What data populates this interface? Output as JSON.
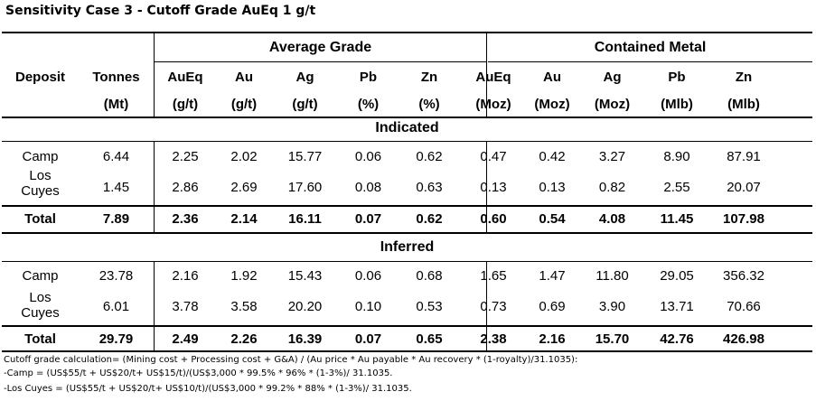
{
  "title": "Sensitivity Case 3 - Cutoff Grade AuEq 1 g/t",
  "groups": {
    "average_grade": "Average Grade",
    "contained_metal": "Contained Metal"
  },
  "header": {
    "labels": [
      "Deposit",
      "Tonnes",
      "AuEq",
      "Au",
      "Ag",
      "Pb",
      "Zn",
      "AuEq",
      "Au",
      "Ag",
      "Pb",
      "Zn"
    ],
    "units": [
      "",
      "(Mt)",
      "(g/t)",
      "(g/t)",
      "(g/t)",
      "(%)",
      "(%)",
      "(Moz)",
      "(Moz)",
      "(Moz)",
      "(Mlb)",
      "(Mlb)"
    ]
  },
  "sections": [
    {
      "name": "Indicated",
      "rows": [
        {
          "deposit": "Camp",
          "values": [
            "6.44",
            "2.25",
            "2.02",
            "15.77",
            "0.06",
            "0.62",
            "0.47",
            "0.42",
            "3.27",
            "8.90",
            "87.91"
          ]
        },
        {
          "deposit_line1": "Los",
          "deposit_line2": "Cuyes",
          "values": [
            "1.45",
            "2.86",
            "2.69",
            "17.60",
            "0.08",
            "0.63",
            "0.13",
            "0.13",
            "0.82",
            "2.55",
            "20.07"
          ]
        }
      ],
      "total": {
        "label": "Total",
        "values": [
          "7.89",
          "2.36",
          "2.14",
          "16.11",
          "0.07",
          "0.62",
          "0.60",
          "0.54",
          "4.08",
          "11.45",
          "107.98"
        ]
      }
    },
    {
      "name": "Inferred",
      "rows": [
        {
          "deposit": "Camp",
          "values": [
            "23.78",
            "2.16",
            "1.92",
            "15.43",
            "0.06",
            "0.68",
            "1.65",
            "1.47",
            "11.80",
            "29.05",
            "356.32"
          ]
        },
        {
          "deposit_line1": "Los",
          "deposit_line2": "Cuyes",
          "values": [
            "6.01",
            "3.78",
            "3.58",
            "20.20",
            "0.10",
            "0.53",
            "0.73",
            "0.69",
            "3.90",
            "13.71",
            "70.66"
          ]
        }
      ],
      "total": {
        "label": "Total",
        "values": [
          "29.79",
          "2.49",
          "2.26",
          "16.39",
          "0.07",
          "0.65",
          "2.38",
          "2.16",
          "15.70",
          "42.76",
          "426.98"
        ]
      }
    }
  ],
  "footer": [
    "Cutoff grade calculation= (Mining cost + Processing cost + G&A) / (Au price * Au payable * Au recovery * (1-royalty)/31.1035):",
    "-Camp = (US$55/t + US$20/t+ US$15/t)/(US$3,000 * 99.5% * 96% * (1-3%)/ 31.1035.",
    "-Los Cuyes = (US$55/t + US$20/t+ US$10/t)/(US$3,000 * 99.2% * 88% * (1-3%)/ 31.1035."
  ]
}
